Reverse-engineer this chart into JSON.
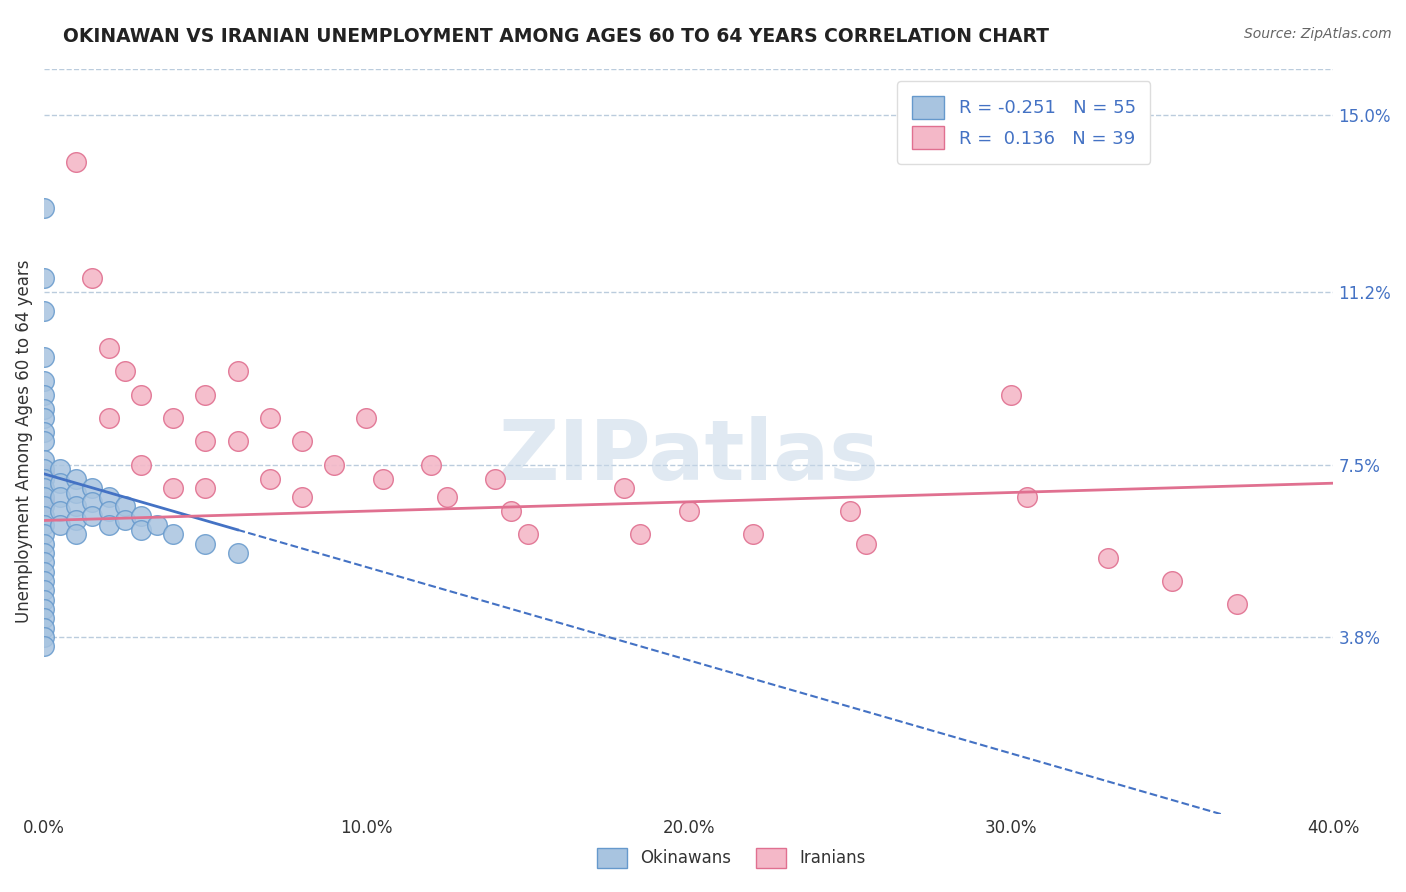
{
  "title": "OKINAWAN VS IRANIAN UNEMPLOYMENT AMONG AGES 60 TO 64 YEARS CORRELATION CHART",
  "source": "Source: ZipAtlas.com",
  "ylabel": "Unemployment Among Ages 60 to 64 years",
  "xlabel": "",
  "x_tick_labels": [
    "0.0%",
    "10.0%",
    "20.0%",
    "30.0%",
    "40.0%"
  ],
  "x_tick_values": [
    0.0,
    0.1,
    0.2,
    0.3,
    0.4
  ],
  "y_tick_labels": [
    "3.8%",
    "7.5%",
    "11.2%",
    "15.0%"
  ],
  "y_tick_values": [
    0.038,
    0.075,
    0.112,
    0.15
  ],
  "xlim": [
    0.0,
    0.4
  ],
  "ylim": [
    0.0,
    0.16
  ],
  "okinawan_color": "#a8c4e0",
  "okinawan_edge": "#6699cc",
  "iranian_color": "#f4b8c8",
  "iranian_edge": "#e07090",
  "okinawan_R": -0.251,
  "okinawan_N": 55,
  "iranian_R": 0.136,
  "iranian_N": 39,
  "legend_label_1": "Okinawans",
  "legend_label_2": "Iranians",
  "background_color": "#ffffff",
  "grid_color": "#bbccdd",
  "watermark": "ZIPatlas",
  "okinawan_line_color": "#4472c4",
  "iranian_line_color": "#e07090",
  "okinawan_x": [
    0.0,
    0.0,
    0.0,
    0.0,
    0.0,
    0.0,
    0.0,
    0.0,
    0.0,
    0.0,
    0.0,
    0.0,
    0.0,
    0.0,
    0.0,
    0.0,
    0.0,
    0.0,
    0.0,
    0.0,
    0.0,
    0.0,
    0.0,
    0.0,
    0.0,
    0.0,
    0.0,
    0.0,
    0.0,
    0.0,
    0.0,
    0.005,
    0.005,
    0.005,
    0.005,
    0.005,
    0.01,
    0.01,
    0.01,
    0.01,
    0.01,
    0.015,
    0.015,
    0.015,
    0.02,
    0.02,
    0.02,
    0.025,
    0.025,
    0.03,
    0.03,
    0.035,
    0.04,
    0.05,
    0.06
  ],
  "okinawan_y": [
    0.13,
    0.115,
    0.108,
    0.098,
    0.093,
    0.09,
    0.087,
    0.085,
    0.082,
    0.08,
    0.076,
    0.074,
    0.072,
    0.07,
    0.068,
    0.066,
    0.064,
    0.062,
    0.06,
    0.058,
    0.056,
    0.054,
    0.052,
    0.05,
    0.048,
    0.046,
    0.044,
    0.042,
    0.04,
    0.038,
    0.036,
    0.074,
    0.071,
    0.068,
    0.065,
    0.062,
    0.072,
    0.069,
    0.066,
    0.063,
    0.06,
    0.07,
    0.067,
    0.064,
    0.068,
    0.065,
    0.062,
    0.066,
    0.063,
    0.064,
    0.061,
    0.062,
    0.06,
    0.058,
    0.056
  ],
  "iranian_x": [
    0.0,
    0.0,
    0.01,
    0.015,
    0.02,
    0.02,
    0.025,
    0.03,
    0.03,
    0.04,
    0.04,
    0.05,
    0.05,
    0.05,
    0.06,
    0.06,
    0.07,
    0.07,
    0.08,
    0.08,
    0.09,
    0.1,
    0.105,
    0.12,
    0.125,
    0.14,
    0.145,
    0.15,
    0.18,
    0.185,
    0.2,
    0.22,
    0.25,
    0.255,
    0.3,
    0.305,
    0.33,
    0.35,
    0.37
  ],
  "iranian_y": [
    0.073,
    0.067,
    0.14,
    0.115,
    0.1,
    0.085,
    0.095,
    0.09,
    0.075,
    0.085,
    0.07,
    0.09,
    0.08,
    0.07,
    0.095,
    0.08,
    0.085,
    0.072,
    0.08,
    0.068,
    0.075,
    0.085,
    0.072,
    0.075,
    0.068,
    0.072,
    0.065,
    0.06,
    0.07,
    0.06,
    0.065,
    0.06,
    0.065,
    0.058,
    0.09,
    0.068,
    0.055,
    0.05,
    0.045
  ]
}
